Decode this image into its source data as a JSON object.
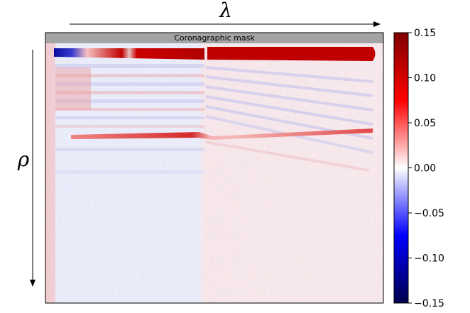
{
  "chart_data": {
    "type": "heatmap",
    "title": "",
    "xlabel": "λ",
    "ylabel": "ρ",
    "annotation": "Coronagraphic mask",
    "colormap": "seismic",
    "colorbar": {
      "range": [
        -0.15,
        0.15
      ],
      "ticks": [
        0.15,
        0.1,
        0.05,
        0.0,
        -0.05,
        -0.1,
        -0.15
      ],
      "tick_labels": [
        "0.15",
        "0.10",
        "0.05",
        "0.00",
        "−0.05",
        "−0.10",
        "−0.15"
      ]
    },
    "axes": {
      "x_ticks_visible": false,
      "y_ticks_visible": false,
      "grid": false
    },
    "features": [
      {
        "name": "bright band near mask",
        "row": 0.08,
        "values_left": -0.14,
        "values_right": 0.14
      },
      {
        "name": "secondary band",
        "row": 0.38,
        "value": 0.1
      }
    ],
    "colors": {
      "negative": "#00004c",
      "zero": "#ffffff",
      "positive": "#800000",
      "mask": "#a0a0a0"
    }
  }
}
